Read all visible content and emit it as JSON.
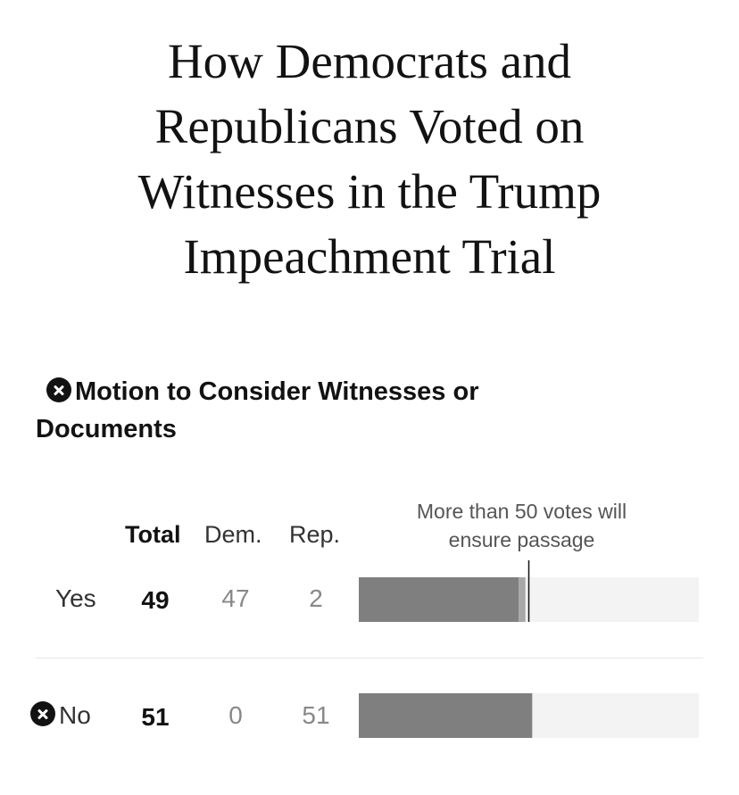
{
  "headline": {
    "lines": [
      "How Democrats and",
      "Republicans Voted on",
      "Witnesses in the Trump",
      "Impeachment Trial"
    ]
  },
  "motion": {
    "title_line1": "Motion to Consider Witnesses or",
    "title_line2": "Documents",
    "status_icon": "x-circle-icon"
  },
  "columns": {
    "total": "Total",
    "dem": "Dem.",
    "rep": "Rep."
  },
  "threshold_note": {
    "line1": "More than 50 votes will",
    "line2": "ensure passage"
  },
  "rows": [
    {
      "label": "Yes",
      "total": "49",
      "dem": "47",
      "rep": "2",
      "winner": false
    },
    {
      "label": "No",
      "total": "51",
      "dem": "0",
      "rep": "51",
      "winner": true
    }
  ],
  "colors": {
    "dem_bar": "#7f7f7f",
    "rep_bar": "#a8a8a8",
    "no_bar": "#7f7f7f",
    "track": "#f3f3f3",
    "threshold": "#121212"
  },
  "chart_data": {
    "type": "bar",
    "orientation": "horizontal",
    "stacked": true,
    "categories": [
      "Yes",
      "No"
    ],
    "series": [
      {
        "name": "Dem.",
        "values": [
          47,
          0
        ]
      },
      {
        "name": "Rep.",
        "values": [
          2,
          51
        ]
      }
    ],
    "totals": [
      49,
      51
    ],
    "xlim": [
      0,
      100
    ],
    "threshold": 50,
    "grid": false
  }
}
